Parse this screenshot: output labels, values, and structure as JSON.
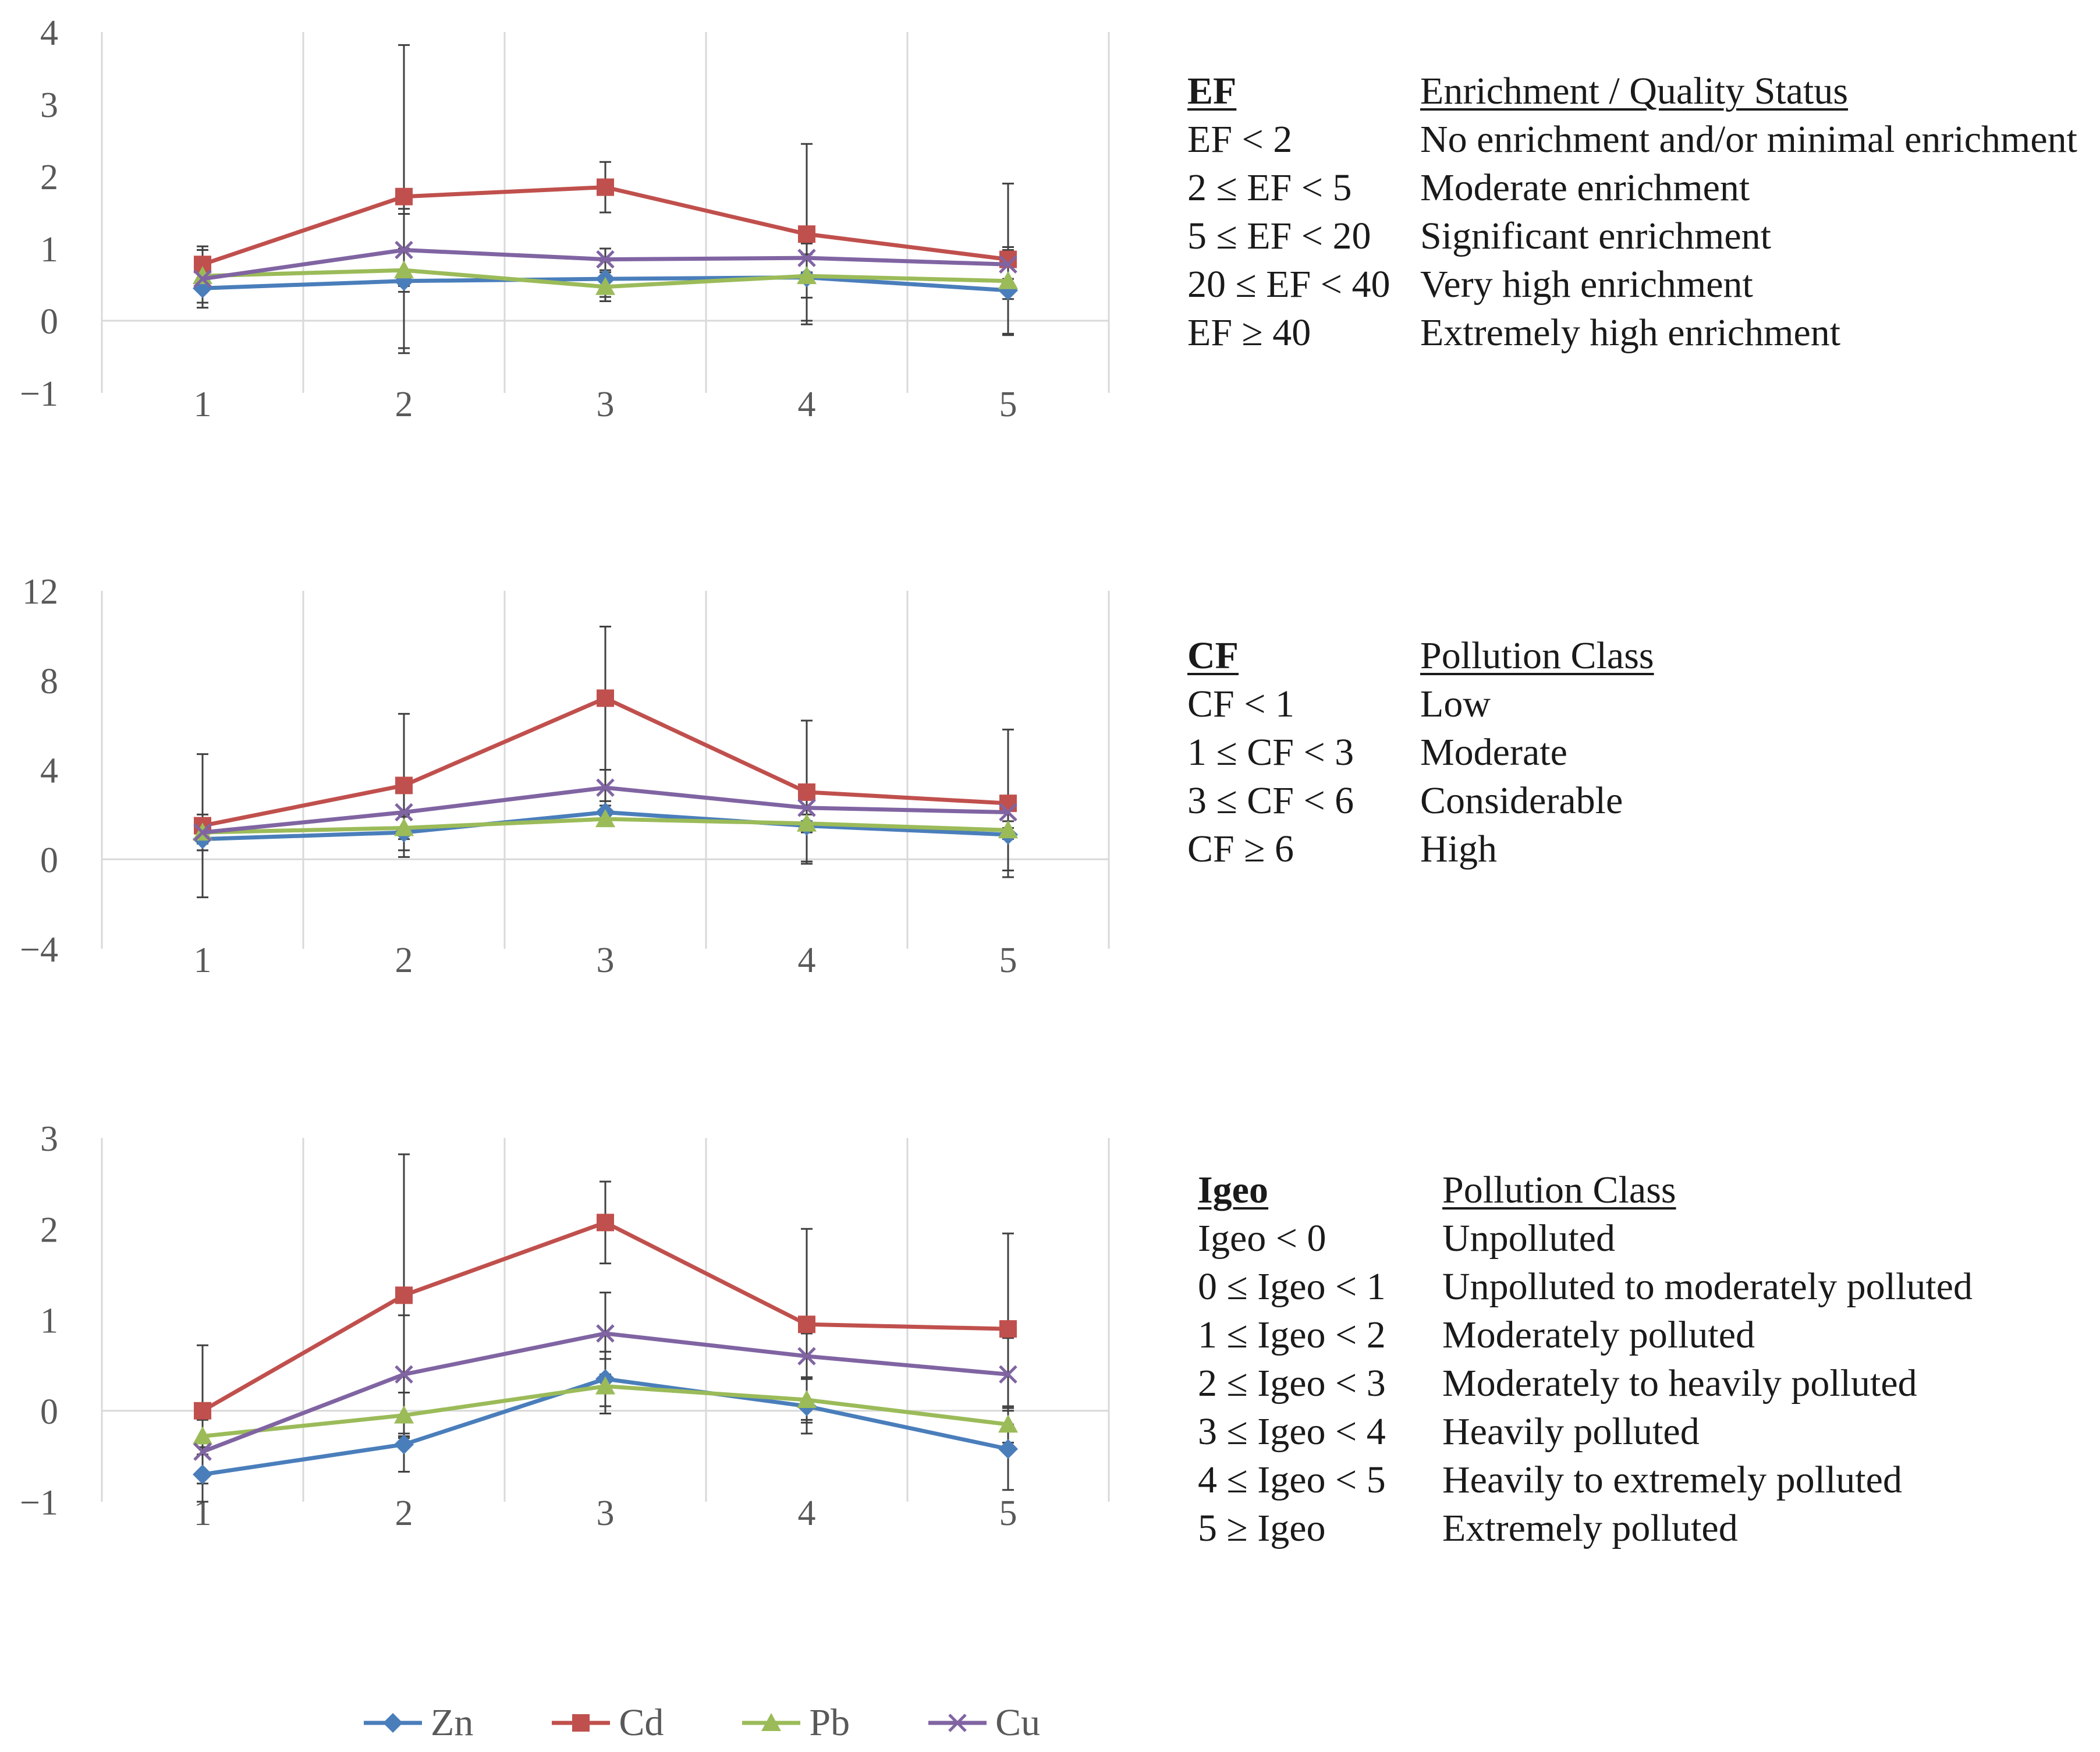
{
  "chart_data": [
    {
      "type": "line",
      "title": "EF",
      "categories": [
        "1",
        "2",
        "3",
        "4",
        "5"
      ],
      "ylim": [
        -1,
        4
      ],
      "yticks": [
        4,
        3,
        2,
        1,
        0,
        -1
      ],
      "ytick_labels": [
        "4",
        "3",
        "2",
        "1",
        "0",
        "−1"
      ],
      "series": [
        {
          "name": "Zn",
          "values": [
            0.45,
            0.55,
            0.58,
            0.6,
            0.42
          ],
          "err": [
            0.2,
            1.0,
            0.25,
            0.6,
            0.6
          ]
        },
        {
          "name": "Cd",
          "values": [
            0.78,
            1.72,
            1.85,
            1.2,
            0.85
          ],
          "err": [
            0.25,
            2.1,
            0.35,
            1.25,
            1.05
          ]
        },
        {
          "name": "Pb",
          "values": [
            0.62,
            0.7,
            0.47,
            0.62,
            0.55
          ],
          "err": [
            0.15,
            0.3,
            0.2,
            0.3,
            0.25
          ]
        },
        {
          "name": "Cu",
          "values": [
            0.58,
            0.98,
            0.85,
            0.87,
            0.78
          ],
          "err": [
            0.4,
            0.5,
            0.15,
            0.2,
            0.2
          ]
        }
      ]
    },
    {
      "type": "line",
      "title": "CF",
      "categories": [
        "1",
        "2",
        "3",
        "4",
        "5"
      ],
      "ylim": [
        -4,
        12
      ],
      "yticks": [
        12,
        8,
        4,
        0,
        -4
      ],
      "ytick_labels": [
        "12",
        "8",
        "4",
        "0",
        "−4"
      ],
      "series": [
        {
          "name": "Zn",
          "values": [
            0.9,
            1.2,
            2.1,
            1.5,
            1.1
          ],
          "err": [
            0.5,
            0.8,
            0.5,
            1.6,
            1.6
          ]
        },
        {
          "name": "Cd",
          "values": [
            1.5,
            3.3,
            7.2,
            3.0,
            2.5
          ],
          "err": [
            3.2,
            3.2,
            3.2,
            3.2,
            3.3
          ]
        },
        {
          "name": "Pb",
          "values": [
            1.2,
            1.4,
            1.8,
            1.6,
            1.3
          ],
          "err": [
            0.5,
            0.5,
            0.3,
            0.4,
            0.4
          ]
        },
        {
          "name": "Cu",
          "values": [
            1.2,
            2.1,
            3.2,
            2.3,
            2.1
          ],
          "err": [
            0.8,
            1.0,
            0.8,
            0.6,
            0.7
          ]
        }
      ]
    },
    {
      "type": "line",
      "title": "Igeo",
      "categories": [
        "1",
        "2",
        "3",
        "4",
        "5"
      ],
      "ylim": [
        -1,
        3
      ],
      "yticks": [
        3,
        2,
        1,
        0,
        -1
      ],
      "ytick_labels": [
        "3",
        "2",
        "1",
        "0",
        "−1"
      ],
      "series": [
        {
          "name": "Zn",
          "values": [
            -0.7,
            -0.37,
            0.35,
            0.05,
            -0.42
          ],
          "err": [
            0.3,
            0.3,
            0.3,
            0.3,
            0.45
          ]
        },
        {
          "name": "Cd",
          "values": [
            0.0,
            1.27,
            2.07,
            0.95,
            0.9
          ],
          "err": [
            0.72,
            1.55,
            0.45,
            1.05,
            1.05
          ]
        },
        {
          "name": "Pb",
          "values": [
            -0.28,
            -0.05,
            0.27,
            0.12,
            -0.15
          ],
          "err": [
            0.2,
            0.25,
            0.3,
            0.25,
            0.2
          ]
        },
        {
          "name": "Cu",
          "values": [
            -0.45,
            0.4,
            0.85,
            0.6,
            0.4
          ],
          "err": [
            0.35,
            0.65,
            0.45,
            0.25,
            0.4
          ]
        }
      ]
    }
  ],
  "series_colors": {
    "Zn": "#4a7ebb",
    "Cd": "#c0504d",
    "Pb": "#9bbb59",
    "Cu": "#8064a2"
  },
  "series_markers": {
    "Zn": "diamond",
    "Cd": "square",
    "Pb": "triangle",
    "Cu": "x"
  },
  "legend": [
    "Zn",
    "Cd",
    "Pb",
    "Cu"
  ],
  "tables": {
    "ef": {
      "h1": "EF",
      "h2": "Enrichment / Quality Status",
      "rows": [
        {
          "a": "EF < 2",
          "b": "No enrichment and/or minimal enrichment"
        },
        {
          "a": "2 ≤ EF < 5",
          "b": "Moderate enrichment"
        },
        {
          "a": "5 ≤ EF < 20",
          "b": "Significant enrichment"
        },
        {
          "a": "20 ≤ EF < 40",
          "b": "Very high enrichment"
        },
        {
          "a": "EF ≥ 40",
          "b": "Extremely high enrichment"
        }
      ]
    },
    "cf": {
      "h1": "CF",
      "h2": "Pollution Class",
      "rows": [
        {
          "a": "CF < 1",
          "b": "Low"
        },
        {
          "a": "1 ≤ CF < 3",
          "b": "Moderate"
        },
        {
          "a": "3 ≤ CF < 6",
          "b": "Considerable"
        },
        {
          "a": "CF ≥ 6",
          "b": "High"
        }
      ]
    },
    "igeo": {
      "h1": "Igeo",
      "h2": "Pollution Class",
      "rows": [
        {
          "a": "Igeo < 0",
          "b": "Unpolluted"
        },
        {
          "a": "0 ≤ Igeo < 1",
          "b": "Unpolluted to moderately polluted"
        },
        {
          "a": "1 ≤ Igeo < 2",
          "b": "Moderately polluted"
        },
        {
          "a": "2 ≤ Igeo < 3",
          "b": "Moderately to heavily polluted"
        },
        {
          "a": "3 ≤ Igeo < 4",
          "b": "Heavily polluted"
        },
        {
          "a": "4 ≤ Igeo < 5",
          "b": "Heavily to extremely polluted"
        },
        {
          "a": "5 ≥ Igeo",
          "b": "Extremely polluted"
        }
      ]
    }
  }
}
